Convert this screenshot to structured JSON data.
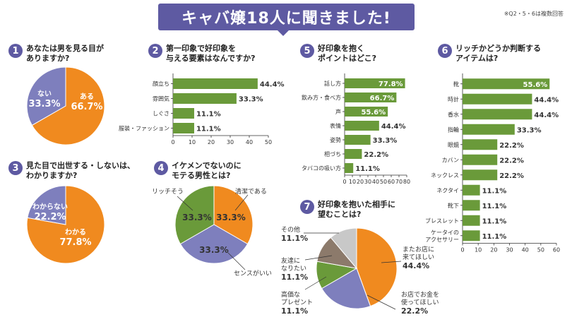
{
  "header": {
    "title": "キャバ嬢18人に聞きました!",
    "note": "※Q2・5・6は複数回答"
  },
  "colors": {
    "purple": "#5e5aa2",
    "orange": "#f08a1f",
    "slate": "#7e7fbd",
    "green": "#6a9a3a",
    "brown": "#8c7a6b",
    "gray": "#c8c8c8",
    "bar": "#6a9a3a"
  },
  "questions": [
    {
      "num": "1",
      "text": "あなたは男を見る目が\nありますか?"
    },
    {
      "num": "2",
      "text": "第一印象で好印象を\n与える要素はなんですか?"
    },
    {
      "num": "3",
      "text": "見た目で出世する・しないは、\nわかりますか?"
    },
    {
      "num": "4",
      "text": "イケメンでないのに\nモテる男性とは?"
    },
    {
      "num": "5",
      "text": "好印象を抱く\nポイントはどこ?"
    },
    {
      "num": "6",
      "text": "リッチかどうか判断する\nアイテムは?"
    },
    {
      "num": "7",
      "text": "好印象を抱いた相手に\n望むことは?"
    }
  ],
  "chart_data": [
    {
      "id": "q1",
      "type": "pie",
      "title": "あなたは男を見る目がありますか?",
      "slices": [
        {
          "label": "ある",
          "value": 66.7,
          "display": "66.7%",
          "color": "#f08a1f"
        },
        {
          "label": "ない",
          "value": 33.3,
          "display": "33.3%",
          "color": "#7e7fbd"
        }
      ]
    },
    {
      "id": "q2",
      "type": "bar",
      "title": "第一印象で好印象を与える要素はなんですか?",
      "categories": [
        "顔立ち",
        "雰囲気",
        "しぐさ",
        "服装・ファッション"
      ],
      "values": [
        44.4,
        33.3,
        11.1,
        11.1
      ],
      "labels": [
        "44.4%",
        "33.3%",
        "11.1%",
        "11.1%"
      ],
      "xlim": [
        0,
        50
      ],
      "ticks": [
        0,
        10,
        20,
        30,
        40,
        50
      ]
    },
    {
      "id": "q3",
      "type": "pie",
      "title": "見た目で出世する・しないは、わかりますか?",
      "slices": [
        {
          "label": "わかる",
          "value": 77.8,
          "display": "77.8%",
          "color": "#f08a1f"
        },
        {
          "label": "わからない",
          "value": 22.2,
          "display": "22.2%",
          "color": "#7e7fbd"
        }
      ]
    },
    {
      "id": "q4",
      "type": "pie",
      "title": "イケメンでないのにモテる男性とは?",
      "slices": [
        {
          "label": "清潔である",
          "value": 33.3,
          "display": "33.3%",
          "color": "#f08a1f"
        },
        {
          "label": "センスがいい",
          "value": 33.3,
          "display": "33.3%",
          "color": "#7e7fbd"
        },
        {
          "label": "リッチそう",
          "value": 33.3,
          "display": "33.3%",
          "color": "#6a9a3a"
        }
      ]
    },
    {
      "id": "q5",
      "type": "bar",
      "title": "好印象を抱くポイントはどこ?",
      "categories": [
        "話し方",
        "飲み方・食べ方",
        "声",
        "表情",
        "姿勢",
        "相づち",
        "タバコの吸い方"
      ],
      "values": [
        77.8,
        66.7,
        55.6,
        44.4,
        33.3,
        22.2,
        11.1
      ],
      "labels": [
        "77.8%",
        "66.7%",
        "55.6%",
        "44.4%",
        "33.3%",
        "22.2%",
        "11.1%"
      ],
      "xlim": [
        0,
        80
      ],
      "ticks": [
        0,
        10,
        20,
        30,
        40,
        50,
        60,
        70,
        80
      ]
    },
    {
      "id": "q6",
      "type": "bar",
      "title": "リッチかどうか判断するアイテムは?",
      "categories": [
        "靴",
        "時計",
        "香水",
        "指輪",
        "眼鏡",
        "カバン",
        "ネックレス",
        "ネクタイ",
        "靴下",
        "ブレスレット",
        "ケータイのアクセサリー"
      ],
      "values": [
        55.6,
        44.4,
        44.4,
        33.3,
        22.2,
        22.2,
        22.2,
        11.1,
        11.1,
        11.1,
        11.1
      ],
      "labels": [
        "55.6%",
        "44.4%",
        "44.4%",
        "33.3%",
        "22.2%",
        "22.2%",
        "22.2%",
        "11.1%",
        "11.1%",
        "11.1%",
        "11.1%"
      ],
      "xlim": [
        0,
        60
      ],
      "ticks": [
        0,
        10,
        20,
        30,
        40,
        50,
        60
      ]
    },
    {
      "id": "q7",
      "type": "pie",
      "title": "好印象を抱いた相手に望むことは?",
      "slices": [
        {
          "label": "またお店に来てほしい",
          "value": 44.4,
          "display": "44.4%",
          "color": "#f08a1f"
        },
        {
          "label": "お店でお金を使ってほしい",
          "value": 22.2,
          "display": "22.2%",
          "color": "#7e7fbd"
        },
        {
          "label": "高価なプレゼント",
          "value": 11.1,
          "display": "11.1%",
          "color": "#6a9a3a"
        },
        {
          "label": "友達になりたい",
          "value": 11.1,
          "display": "11.1%",
          "color": "#8c7a6b"
        },
        {
          "label": "その他",
          "value": 11.1,
          "display": "11.1%",
          "color": "#c8c8c8"
        }
      ]
    }
  ]
}
